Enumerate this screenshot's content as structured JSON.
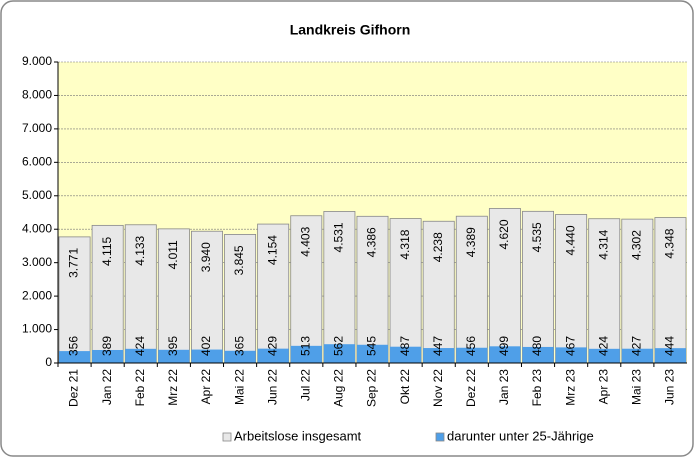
{
  "chart_data": {
    "type": "bar",
    "title": "Landkreis Gifhorn",
    "categories": [
      "Dez 21",
      "Jan 22",
      "Feb 22",
      "Mrz 22",
      "Apr 22",
      "Mai 22",
      "Jun 22",
      "Jul 22",
      "Aug 22",
      "Sep 22",
      "Okt 22",
      "Nov 22",
      "Dez 22",
      "Jan 23",
      "Feb 23",
      "Mrz 23",
      "Apr 23",
      "Mai 23",
      "Jun 23"
    ],
    "series": [
      {
        "name": "Arbeitslose insgesamt",
        "color": "#e8e8e8",
        "values": [
          3771,
          4115,
          4133,
          4011,
          3940,
          3845,
          4154,
          4403,
          4531,
          4386,
          4318,
          4238,
          4389,
          4620,
          4535,
          4440,
          4314,
          4302,
          4348
        ],
        "value_labels": [
          "3.771",
          "4.115",
          "4.133",
          "4.011",
          "3.940",
          "3.845",
          "4.154",
          "4.403",
          "4.531",
          "4.386",
          "4.318",
          "4.238",
          "4.389",
          "4.620",
          "4.535",
          "4.440",
          "4.314",
          "4.302",
          "4.348"
        ]
      },
      {
        "name": "darunter unter 25-Jährige",
        "color": "#4f9fe8",
        "values": [
          356,
          389,
          424,
          395,
          402,
          365,
          429,
          513,
          562,
          545,
          487,
          447,
          456,
          499,
          480,
          467,
          424,
          427,
          444
        ]
      }
    ],
    "ylim": [
      0,
      9000
    ],
    "yticks": [
      0,
      {
        "value": 1000,
        "label": "1.000"
      },
      {
        "value": 2000,
        "label": "2.000"
      },
      {
        "value": 3000,
        "label": "3.000"
      },
      {
        "value": 4000,
        "label": "4.000"
      },
      {
        "value": 5000,
        "label": "5.000"
      },
      {
        "value": 6000,
        "label": "6.000"
      },
      {
        "value": 7000,
        "label": "7.000"
      },
      {
        "value": 8000,
        "label": "8.000"
      },
      {
        "value": 9000,
        "label": "9.000"
      }
    ],
    "grid": true
  }
}
